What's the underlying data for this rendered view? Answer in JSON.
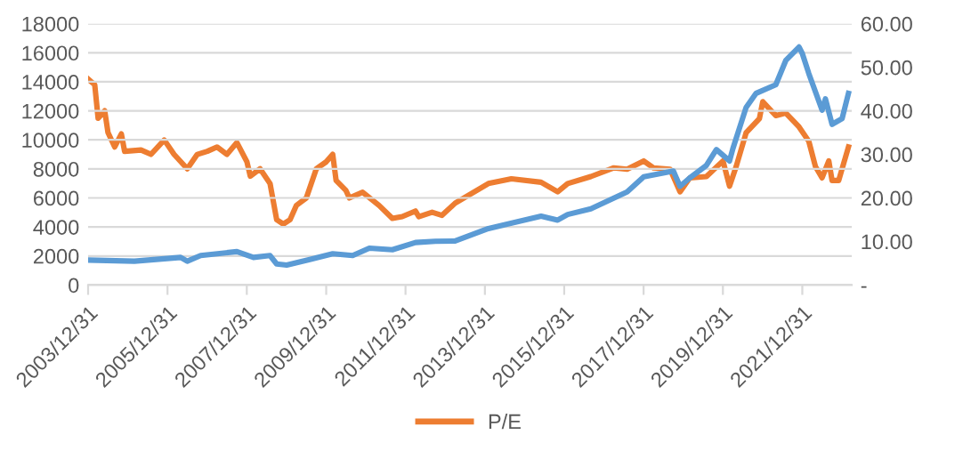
{
  "chart_data": {
    "type": "line",
    "series": [
      {
        "color": "#5b9bd5",
        "x": [
          "2003-12-31",
          "2005-03",
          "2006-05",
          "2006-07",
          "2006-11",
          "2007-10",
          "2008-03",
          "2008-08",
          "2008-10",
          "2009-01",
          "2009-08",
          "2010-03",
          "2010-09",
          "2011-02",
          "2011-09",
          "2012-04",
          "2012-10",
          "2013-04",
          "2014-02",
          "2015-06",
          "2015-11",
          "2016-02",
          "2016-09",
          "2017-08",
          "2018-01",
          "2018-10",
          "2018-12",
          "2019-03",
          "2019-08",
          "2019-11",
          "2020-03",
          "2020-04",
          "2020-08",
          "2020-11",
          "2021-05",
          "2021-08",
          "2021-12",
          "2022-01",
          "2022-03",
          "2022-07",
          "2022-08",
          "2022-10",
          "2023-01",
          "2023-03"
        ],
        "values": [
          1720,
          1640,
          1900,
          1640,
          2030,
          2300,
          1900,
          2030,
          1450,
          1370,
          1760,
          2150,
          2030,
          2540,
          2430,
          2930,
          3010,
          3030,
          3890,
          4740,
          4470,
          4860,
          5250,
          6410,
          7460,
          7850,
          6800,
          7380,
          8240,
          9330,
          8550,
          9400,
          12240,
          13210,
          13800,
          15470,
          16400,
          15930,
          14570,
          12050,
          12820,
          11070,
          11460,
          13210
        ]
      },
      {
        "name": "P/E",
        "color": "#ed7d31",
        "axis": "y2",
        "x": [
          "2003-12-31",
          "2004-03",
          "2004-04",
          "2004-06",
          "2004-07",
          "2004-09",
          "2004-11",
          "2004-12",
          "2005-05",
          "2005-08",
          "2005-12",
          "2006-03",
          "2006-07",
          "2006-10",
          "2007-01",
          "2007-04",
          "2007-07",
          "2007-10",
          "2008-01",
          "2008-02",
          "2008-05",
          "2008-08",
          "2008-10",
          "2008-12",
          "2009-02",
          "2009-04",
          "2009-07",
          "2009-10",
          "2010-01",
          "2010-03",
          "2010-04",
          "2010-07",
          "2010-08",
          "2010-12",
          "2011-05",
          "2011-09",
          "2011-12",
          "2012-04",
          "2012-05",
          "2012-09",
          "2012-12",
          "2013-04",
          "2014-02",
          "2014-09",
          "2015-06",
          "2015-11",
          "2016-02",
          "2016-09",
          "2017-04",
          "2017-08",
          "2018-01",
          "2018-04",
          "2018-09",
          "2018-12",
          "2019-03",
          "2019-08",
          "2020-01",
          "2020-03",
          "2020-05",
          "2020-08",
          "2020-12",
          "2021-01",
          "2021-05",
          "2021-08",
          "2021-12",
          "2022-03",
          "2022-05",
          "2022-07",
          "2022-09",
          "2022-10",
          "2022-12",
          "2023-03"
        ],
        "values": [
          47.3,
          46,
          38.3,
          40,
          35,
          31.7,
          34.7,
          30.7,
          31,
          30,
          33.3,
          30,
          26.7,
          30,
          30.7,
          31.7,
          30,
          32.7,
          28.3,
          25,
          26.7,
          23.3,
          15,
          14,
          15,
          18.3,
          20,
          26.7,
          28.3,
          30,
          24,
          21.7,
          20,
          21.3,
          18.3,
          15.3,
          15.7,
          17,
          15.7,
          16.7,
          16,
          18.8,
          23.3,
          24.4,
          23.6,
          21.4,
          23.3,
          24.9,
          26.9,
          26.6,
          28.5,
          26.9,
          26.6,
          21.4,
          24.6,
          24.9,
          28.5,
          22.7,
          27.2,
          35,
          38.2,
          42.1,
          38.9,
          39.5,
          36.3,
          33,
          27.2,
          24.6,
          28.5,
          24,
          24,
          31.7
        ]
      }
    ],
    "xlim": [
      "2003-12-31",
      "2023-03-31"
    ],
    "xticks": [
      {
        "value": "2003-12-31",
        "label": "2003/12/31"
      },
      {
        "value": "2005-12-31",
        "label": "2005/12/31"
      },
      {
        "value": "2007-12-31",
        "label": "2007/12/31"
      },
      {
        "value": "2009-12-31",
        "label": "2009/12/31"
      },
      {
        "value": "2011-12-31",
        "label": "2011/12/31"
      },
      {
        "value": "2013-12-31",
        "label": "2013/12/31"
      },
      {
        "value": "2015-12-31",
        "label": "2015/12/31"
      },
      {
        "value": "2017-12-31",
        "label": "2017/12/31"
      },
      {
        "value": "2019-12-31",
        "label": "2019/12/31"
      },
      {
        "value": "2021-12-31",
        "label": "2021/12/31"
      }
    ],
    "ylim": [
      0,
      18000
    ],
    "yticks": [
      0,
      2000,
      4000,
      6000,
      8000,
      10000,
      12000,
      14000,
      16000,
      18000
    ],
    "y2lim": [
      0,
      60
    ],
    "y2ticks": [
      {
        "value": 0,
        "label": "-"
      },
      {
        "value": 10,
        "label": "10.00"
      },
      {
        "value": 20,
        "label": "20.00"
      },
      {
        "value": 30,
        "label": "30.00"
      },
      {
        "value": 40,
        "label": "40.00"
      },
      {
        "value": 50,
        "label": "50.00"
      },
      {
        "value": 60,
        "label": "60.00"
      }
    ],
    "grid": "y",
    "legend": "bottom"
  }
}
